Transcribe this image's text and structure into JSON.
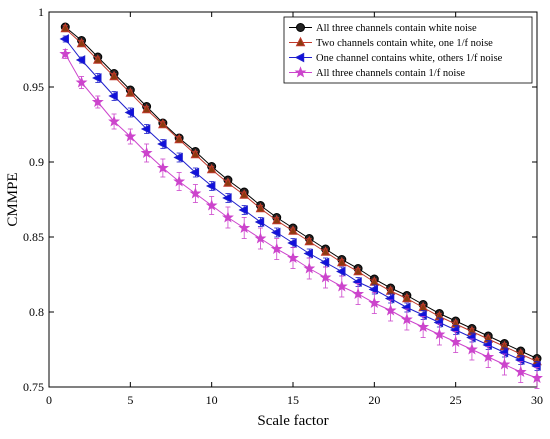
{
  "chart_data": {
    "type": "line",
    "title": "",
    "xlabel": "Scale factor",
    "ylabel": "CMMPE",
    "xlim": [
      0,
      30
    ],
    "ylim": [
      0.75,
      1.0
    ],
    "xticks": [
      0,
      5,
      10,
      15,
      20,
      25,
      30
    ],
    "yticks": [
      0.75,
      0.8,
      0.85,
      0.9,
      0.95,
      1.0
    ],
    "xtick_labels": [
      "0",
      "5",
      "10",
      "15",
      "20",
      "25",
      "30"
    ],
    "ytick_labels": [
      "0.75",
      "0.8",
      "0.85",
      "0.9",
      "0.95",
      "1"
    ],
    "grid": false,
    "legend_position": "top-right",
    "x": [
      1,
      2,
      3,
      4,
      5,
      6,
      7,
      8,
      9,
      10,
      11,
      12,
      13,
      14,
      15,
      16,
      17,
      18,
      19,
      20,
      21,
      22,
      23,
      24,
      25,
      26,
      27,
      28,
      29,
      30
    ],
    "series": [
      {
        "name": "All three channels contain white noise",
        "color": "#000000",
        "fill": "#222222",
        "marker": "circle",
        "values": [
          0.99,
          0.981,
          0.97,
          0.959,
          0.948,
          0.937,
          0.926,
          0.916,
          0.907,
          0.897,
          0.888,
          0.88,
          0.871,
          0.863,
          0.856,
          0.849,
          0.842,
          0.835,
          0.829,
          0.822,
          0.816,
          0.811,
          0.805,
          0.799,
          0.794,
          0.789,
          0.784,
          0.779,
          0.774,
          0.769
        ],
        "errors": [
          0.002,
          0.002,
          0.002,
          0.002,
          0.002,
          0.002,
          0.002,
          0.002,
          0.002,
          0.002,
          0.002,
          0.002,
          0.002,
          0.002,
          0.002,
          0.002,
          0.002,
          0.002,
          0.002,
          0.002,
          0.002,
          0.002,
          0.002,
          0.002,
          0.002,
          0.002,
          0.002,
          0.002,
          0.002,
          0.002
        ]
      },
      {
        "name": "Two channels contain white, one 1/f noise",
        "color": "#c0392b",
        "fill": "#8b3a0f",
        "marker": "triangle-up",
        "values": [
          0.989,
          0.979,
          0.968,
          0.957,
          0.946,
          0.935,
          0.925,
          0.915,
          0.905,
          0.895,
          0.886,
          0.878,
          0.869,
          0.861,
          0.854,
          0.847,
          0.84,
          0.833,
          0.827,
          0.82,
          0.814,
          0.809,
          0.803,
          0.797,
          0.792,
          0.787,
          0.782,
          0.777,
          0.772,
          0.767
        ],
        "errors": [
          0.002,
          0.002,
          0.002,
          0.002,
          0.002,
          0.002,
          0.002,
          0.002,
          0.002,
          0.002,
          0.002,
          0.002,
          0.002,
          0.002,
          0.002,
          0.002,
          0.002,
          0.002,
          0.002,
          0.002,
          0.002,
          0.002,
          0.002,
          0.002,
          0.002,
          0.002,
          0.002,
          0.002,
          0.002,
          0.002
        ]
      },
      {
        "name": "One channel contains white, others 1/f noise",
        "color": "#1f1fcc",
        "fill": "#1010dd",
        "marker": "triangle-left",
        "values": [
          0.982,
          0.968,
          0.956,
          0.944,
          0.933,
          0.922,
          0.912,
          0.903,
          0.893,
          0.884,
          0.876,
          0.868,
          0.86,
          0.853,
          0.846,
          0.839,
          0.833,
          0.827,
          0.82,
          0.815,
          0.809,
          0.803,
          0.798,
          0.793,
          0.788,
          0.783,
          0.778,
          0.773,
          0.768,
          0.764
        ],
        "errors": [
          0.002,
          0.002,
          0.003,
          0.003,
          0.003,
          0.003,
          0.003,
          0.003,
          0.003,
          0.003,
          0.003,
          0.003,
          0.003,
          0.003,
          0.003,
          0.003,
          0.003,
          0.003,
          0.003,
          0.003,
          0.003,
          0.003,
          0.003,
          0.003,
          0.003,
          0.003,
          0.003,
          0.003,
          0.003,
          0.003
        ]
      },
      {
        "name": "All three channels contain 1/f noise",
        "color": "#cc44cc",
        "fill": "#cc44cc",
        "marker": "star",
        "values": [
          0.972,
          0.953,
          0.94,
          0.927,
          0.917,
          0.906,
          0.896,
          0.887,
          0.879,
          0.871,
          0.863,
          0.856,
          0.849,
          0.842,
          0.836,
          0.829,
          0.823,
          0.817,
          0.812,
          0.806,
          0.801,
          0.795,
          0.79,
          0.785,
          0.78,
          0.775,
          0.77,
          0.765,
          0.76,
          0.756
        ],
        "errors": [
          0.003,
          0.004,
          0.004,
          0.005,
          0.005,
          0.006,
          0.006,
          0.006,
          0.006,
          0.006,
          0.007,
          0.007,
          0.007,
          0.007,
          0.007,
          0.007,
          0.007,
          0.007,
          0.007,
          0.007,
          0.007,
          0.007,
          0.007,
          0.007,
          0.007,
          0.007,
          0.007,
          0.007,
          0.007,
          0.007
        ]
      }
    ]
  }
}
